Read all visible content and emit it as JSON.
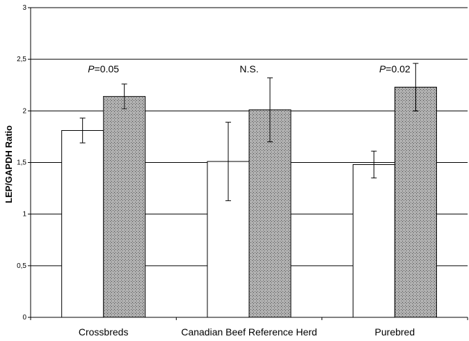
{
  "chart_data": {
    "type": "bar",
    "title": "",
    "xlabel": "",
    "ylabel": "LEP/GAPDH Ratio",
    "ylim": [
      0,
      3
    ],
    "yticks": [
      0,
      0.5,
      1,
      1.5,
      2,
      2.5,
      3
    ],
    "ytick_labels": [
      "0",
      "0,5",
      "1",
      "1,5",
      "2",
      "2,5",
      "3"
    ],
    "grid": true,
    "legend": "none",
    "categories": [
      "Crossbreds",
      "Canadian Beef Reference Herd",
      "Purebred"
    ],
    "series": [
      {
        "fill": "#ffffff",
        "values": [
          1.81,
          1.51,
          1.48
        ],
        "errors": [
          0.12,
          0.38,
          0.13
        ]
      },
      {
        "fill": "#b8b8b8",
        "pattern": "stipple",
        "values": [
          2.14,
          2.01,
          2.23
        ],
        "errors": [
          0.12,
          0.31,
          0.23
        ]
      }
    ],
    "annotations": [
      {
        "category": 0,
        "prefix": "P",
        "text": "=0.05",
        "y": 2.4
      },
      {
        "category": 1,
        "prefix": "",
        "text": "N.S.",
        "y": 2.4
      },
      {
        "category": 2,
        "prefix": "P",
        "text": "=0.02",
        "y": 2.4
      }
    ]
  }
}
